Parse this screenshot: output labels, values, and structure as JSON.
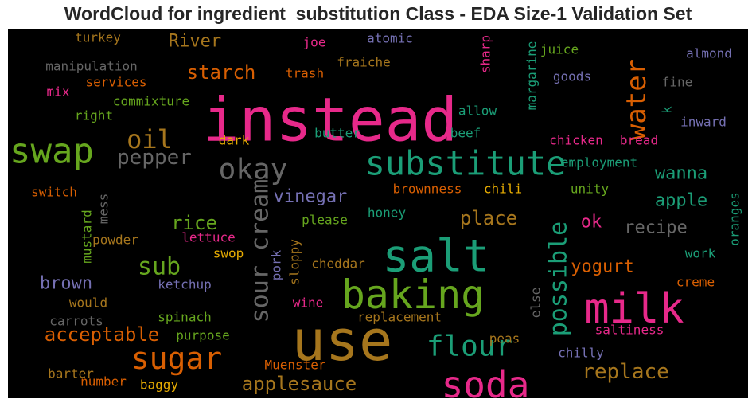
{
  "chart_data": {
    "type": "wordcloud",
    "title": "WordCloud for ingredient_substitution Class - EDA Size-1 Validation Set",
    "background": "#000000",
    "palette": {
      "pink": "#e7298a",
      "teal": "#1b9e77",
      "green": "#66a61e",
      "gold": "#a6761d",
      "orange": "#d95f02",
      "purple": "#7570b3",
      "yellow": "#e6ab02",
      "gray": "#666666"
    },
    "words": [
      {
        "text": "instead",
        "color": "pink"
      },
      {
        "text": "use",
        "color": "gold"
      },
      {
        "text": "salt",
        "color": "teal"
      },
      {
        "text": "milk",
        "color": "pink"
      },
      {
        "text": "baking",
        "color": "green"
      },
      {
        "text": "substitute",
        "color": "teal"
      },
      {
        "text": "swap",
        "color": "green"
      },
      {
        "text": "soda",
        "color": "pink"
      },
      {
        "text": "sugar",
        "color": "orange"
      },
      {
        "text": "flour",
        "color": "teal"
      },
      {
        "text": "okay",
        "color": "gray"
      },
      {
        "text": "oil",
        "color": "gold"
      },
      {
        "text": "water",
        "color": "orange"
      },
      {
        "text": "sour cream",
        "color": "gray"
      },
      {
        "text": "possible",
        "color": "teal"
      },
      {
        "text": "sub",
        "color": "green"
      },
      {
        "text": "replace",
        "color": "gold"
      },
      {
        "text": "pepper",
        "color": "gray"
      },
      {
        "text": "applesauce",
        "color": "gold"
      },
      {
        "text": "acceptable",
        "color": "orange"
      },
      {
        "text": "vinegar",
        "color": "purple"
      },
      {
        "text": "starch",
        "color": "orange"
      },
      {
        "text": "rice",
        "color": "green"
      },
      {
        "text": "place",
        "color": "gold"
      },
      {
        "text": "recipe",
        "color": "gray"
      },
      {
        "text": "apple",
        "color": "teal"
      },
      {
        "text": "wanna",
        "color": "teal"
      },
      {
        "text": "yogurt",
        "color": "orange"
      },
      {
        "text": "brown",
        "color": "purple"
      },
      {
        "text": "River",
        "color": "gold"
      },
      {
        "text": "ok",
        "color": "pink"
      },
      {
        "text": "chicken",
        "color": "pink"
      },
      {
        "text": "bread",
        "color": "pink"
      },
      {
        "text": "butter",
        "color": "teal"
      },
      {
        "text": "beef",
        "color": "teal"
      },
      {
        "text": "allow",
        "color": "teal"
      },
      {
        "text": "juice",
        "color": "green"
      },
      {
        "text": "margarine",
        "color": "teal"
      },
      {
        "text": "goods",
        "color": "purple"
      },
      {
        "text": "almond",
        "color": "purple"
      },
      {
        "text": "fine",
        "color": "gray"
      },
      {
        "text": "inward",
        "color": "purple"
      },
      {
        "text": "k",
        "color": "teal"
      },
      {
        "text": "employment",
        "color": "teal"
      },
      {
        "text": "unity",
        "color": "green"
      },
      {
        "text": "chili",
        "color": "yellow"
      },
      {
        "text": "brownness",
        "color": "orange"
      },
      {
        "text": "honey",
        "color": "teal"
      },
      {
        "text": "please",
        "color": "green"
      },
      {
        "text": "dark",
        "color": "yellow"
      },
      {
        "text": "turkey",
        "color": "gold"
      },
      {
        "text": "manipulation",
        "color": "gray"
      },
      {
        "text": "services",
        "color": "orange"
      },
      {
        "text": "mix",
        "color": "pink"
      },
      {
        "text": "commixture",
        "color": "green"
      },
      {
        "text": "right",
        "color": "green"
      },
      {
        "text": "joe",
        "color": "pink"
      },
      {
        "text": "atomic",
        "color": "purple"
      },
      {
        "text": "fraiche",
        "color": "gold"
      },
      {
        "text": "trash",
        "color": "orange"
      },
      {
        "text": "sharp",
        "color": "pink"
      },
      {
        "text": "switch",
        "color": "orange"
      },
      {
        "text": "mess",
        "color": "gray"
      },
      {
        "text": "mustard",
        "color": "green"
      },
      {
        "text": "powder",
        "color": "gold"
      },
      {
        "text": "lettuce",
        "color": "pink"
      },
      {
        "text": "swop",
        "color": "yellow"
      },
      {
        "text": "sloppy",
        "color": "gold"
      },
      {
        "text": "pork",
        "color": "purple"
      },
      {
        "text": "cheddar",
        "color": "gold"
      },
      {
        "text": "ketchup",
        "color": "purple"
      },
      {
        "text": "would",
        "color": "gold"
      },
      {
        "text": "carrots",
        "color": "gray"
      },
      {
        "text": "spinach",
        "color": "green"
      },
      {
        "text": "purpose",
        "color": "green"
      },
      {
        "text": "wine",
        "color": "pink"
      },
      {
        "text": "replacement",
        "color": "gold"
      },
      {
        "text": "peas",
        "color": "gold"
      },
      {
        "text": "else",
        "color": "gray"
      },
      {
        "text": "saltiness",
        "color": "pink"
      },
      {
        "text": "chilly",
        "color": "purple"
      },
      {
        "text": "creme",
        "color": "orange"
      },
      {
        "text": "work",
        "color": "teal"
      },
      {
        "text": "oranges",
        "color": "teal"
      },
      {
        "text": "barter",
        "color": "gold"
      },
      {
        "text": "number",
        "color": "orange"
      },
      {
        "text": "baggy",
        "color": "yellow"
      },
      {
        "text": "Muenster",
        "color": "orange"
      }
    ]
  }
}
